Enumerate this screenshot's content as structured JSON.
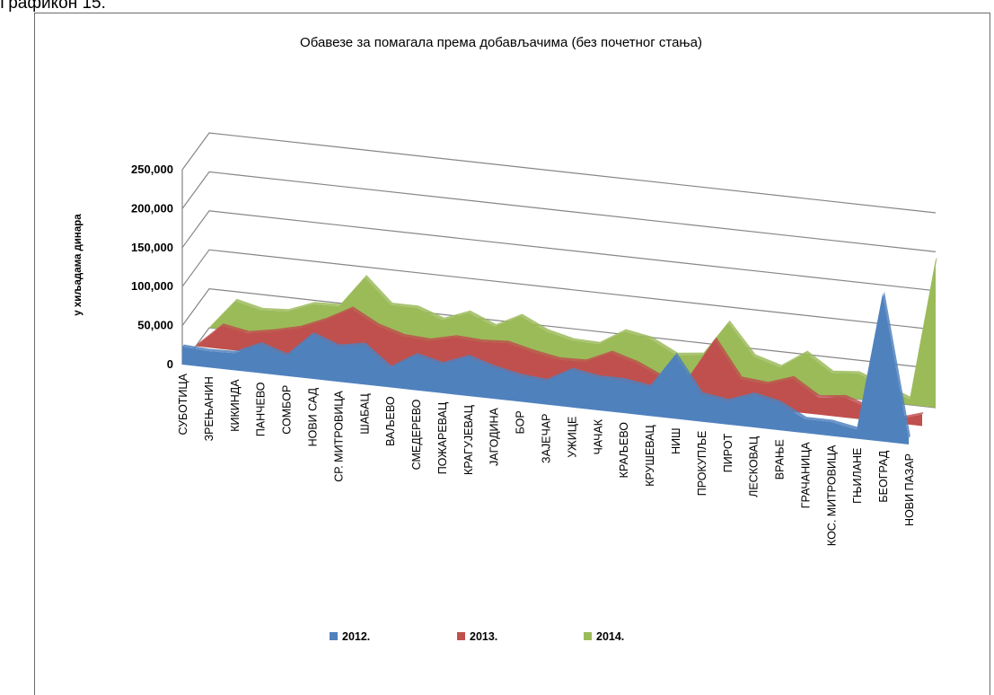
{
  "caption": "Графикон 15.",
  "chart_data": {
    "type": "area",
    "title": "Обавезе за помагала према добављачима (без почетног стања)",
    "ylabel": "у хиљадама динара",
    "xlabel": "",
    "ylim": [
      0,
      250000
    ],
    "yticks": [
      "0",
      "50,000",
      "100,000",
      "150,000",
      "200,000",
      "250,000"
    ],
    "yticks_values": [
      0,
      50000,
      100000,
      150000,
      200000,
      250000
    ],
    "categories": [
      "СУБОТИЦА",
      "ЗРЕЊАНИН",
      "КИКИНДА",
      "ПАНЧЕВО",
      "СОМБОР",
      "НОВИ САД",
      "СР. МИТРОВИЦА",
      "ШАБАЦ",
      "ВАЉЕВО",
      "СМЕДЕРЕВО",
      "ПОЖАРЕВАЦ",
      "КРАГУЈЕВАЦ",
      "ЈАГОДИНА",
      "БОР",
      "ЗАЈЕЧАР",
      "УЖИЦЕ",
      "ЧАЧАК",
      "КРАЉЕВО",
      "КРУШЕВАЦ",
      "НИШ",
      "ПРОКУПЉЕ",
      "ПИРОТ",
      "ЛЕСКОВАЦ",
      "ВРАЊЕ",
      "ГРАЧАНИЦА",
      "КОС. МИТРОВИЦА",
      "ГЊИЛАНЕ",
      "БЕОГРАД",
      "НОВИ ПАЗАР"
    ],
    "series": [
      {
        "name": "2012.",
        "color": "#4f81bd",
        "values": [
          23000,
          21000,
          22000,
          37000,
          26000,
          57000,
          45000,
          51000,
          25000,
          45000,
          37000,
          50000,
          40000,
          33000,
          30000,
          48000,
          42000,
          42000,
          37000,
          82000,
          35000,
          30000,
          42000,
          35000,
          18000,
          18000,
          12000,
          190000,
          8000
        ]
      },
      {
        "name": "2013.",
        "color": "#c0504d",
        "values": [
          0,
          30000,
          24000,
          30000,
          38000,
          52000,
          70000,
          52000,
          42000,
          40000,
          48000,
          46000,
          48000,
          40000,
          34000,
          35000,
          50000,
          40000,
          25000,
          30000,
          82000,
          35000,
          32000,
          43000,
          22000,
          26000,
          15000,
          5000,
          15000
        ]
      },
      {
        "name": "2014.",
        "color": "#9bbb59",
        "values": [
          0,
          38000,
          30000,
          32000,
          45000,
          46000,
          87000,
          55000,
          55000,
          43000,
          56000,
          42000,
          59000,
          43000,
          35000,
          34000,
          54000,
          48000,
          31000,
          35000,
          80000,
          40000,
          30000,
          52000,
          30000,
          33000,
          20000,
          7000,
          190000
        ]
      }
    ],
    "legend": {
      "position": "bottom",
      "entries": [
        "2012.",
        "2013.",
        "2014."
      ]
    },
    "grid": true,
    "style": "3d-area"
  }
}
